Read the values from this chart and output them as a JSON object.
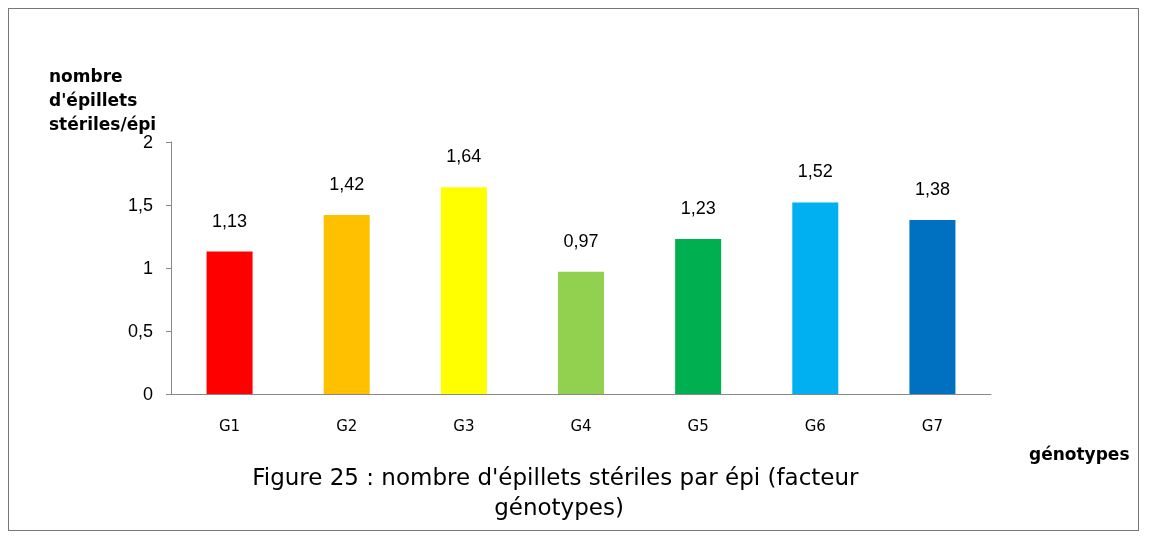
{
  "chart_data": {
    "type": "bar",
    "title": "Figure 25 : nombre d'épillets stériles par épi (facteur génotypes)",
    "ylabel": "nombre d'épillets stériles/épi",
    "xlabel": "génotypes",
    "categories": [
      "G1",
      "G2",
      "G3",
      "G4",
      "G5",
      "G6",
      "G7"
    ],
    "values": [
      1.13,
      1.42,
      1.64,
      0.97,
      1.23,
      1.52,
      1.38
    ],
    "colors": [
      "#ff0000",
      "#ffc000",
      "#ffff00",
      "#92d050",
      "#00b050",
      "#00b0f0",
      "#0070c0"
    ],
    "value_labels": [
      "1,13",
      "1,42",
      "1,64",
      "0,97",
      "1,23",
      "1,52",
      "1,38"
    ],
    "ylim": [
      0,
      2
    ],
    "yticks": [
      0,
      {
        "value": 0.5,
        "label": "0,5"
      },
      1,
      {
        "value": 1.5,
        "label": "1,5"
      },
      2
    ],
    "grid": false
  }
}
